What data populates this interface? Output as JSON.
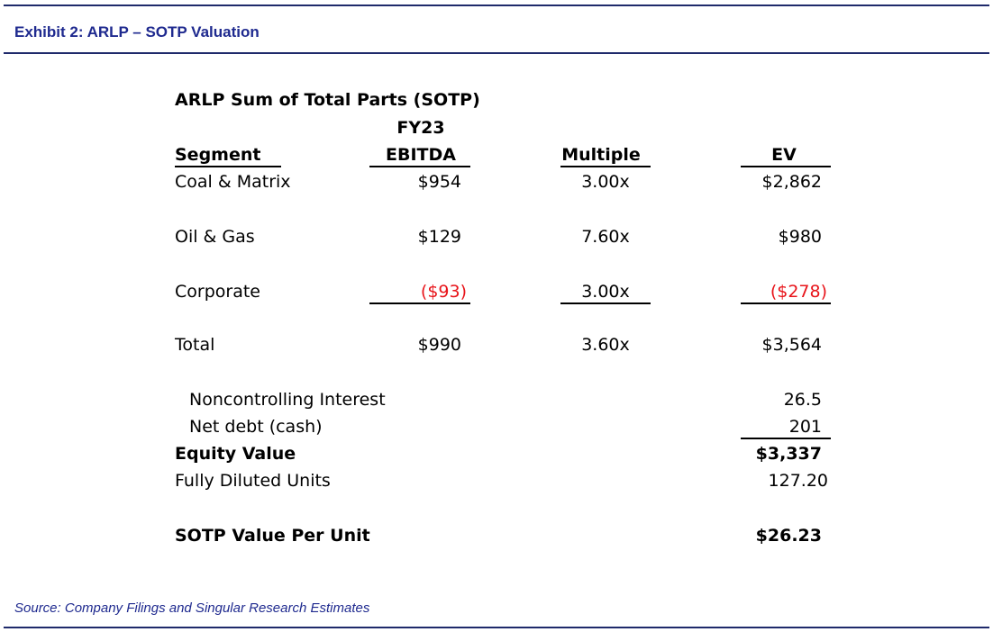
{
  "exhibit": {
    "title": "Exhibit 2:  ARLP – SOTP Valuation",
    "source": "Source:  Company Filings and Singular Research Estimates"
  },
  "table": {
    "title": "ARLP Sum of Total Parts (SOTP)",
    "headers": {
      "segment": "Segment",
      "ebitda_line1": "FY23",
      "ebitda_line2": "EBITDA",
      "multiple": "Multiple",
      "ev": "EV"
    },
    "rows": [
      {
        "segment": "Coal & Matrix",
        "ebitda": "$954",
        "multiple": "3.00x",
        "ev": "$2,862"
      },
      {
        "segment": "Oil & Gas",
        "ebitda": "$129",
        "multiple": "7.60x",
        "ev": "$980"
      },
      {
        "segment": "Corporate",
        "ebitda": "($93)",
        "multiple": "3.00x",
        "ev": "($278)"
      },
      {
        "segment": "Total",
        "ebitda": "$990",
        "multiple": "3.60x",
        "ev": "$3,564"
      }
    ],
    "adjustments": [
      {
        "label": "Noncontrolling Interest",
        "value": "26.5"
      },
      {
        "label": "Net debt (cash)",
        "value": "201"
      }
    ],
    "equity_value": {
      "label": "Equity Value",
      "value": "$3,337"
    },
    "fully_diluted_units": {
      "label": "Fully Diluted Units",
      "value": "127.20"
    },
    "sotp_value_per_unit": {
      "label": "SOTP Value Per Unit",
      "value": "$26.23"
    }
  },
  "colors": {
    "rule": "#1f2a6b",
    "title": "#1f2a8f",
    "negative": "#e8141a"
  }
}
